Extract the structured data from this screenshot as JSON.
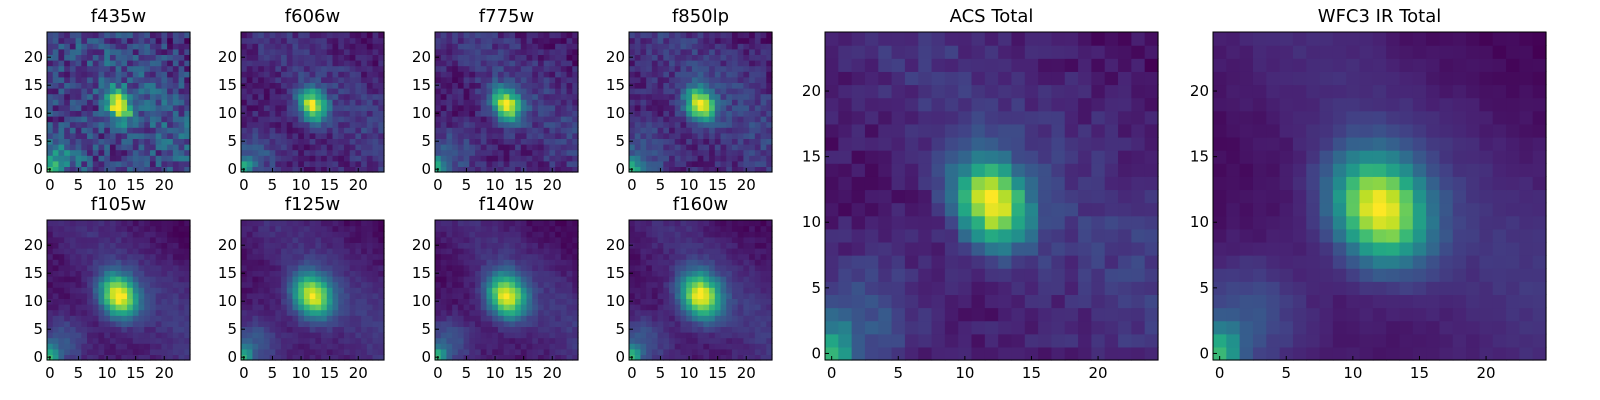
{
  "chart_data": [
    {
      "type": "heatmap",
      "title": "f435w",
      "colormap": "viridis",
      "extent": [
        -0.5,
        24.5,
        -0.5,
        24.5
      ],
      "xticks": [
        0,
        5,
        10,
        15,
        20
      ],
      "yticks": [
        0,
        5,
        10,
        15,
        20
      ],
      "xtick_labels": [
        "0",
        "5",
        "10",
        "15",
        "20"
      ],
      "ytick_labels": [
        "0",
        "5",
        "10",
        "15",
        "20"
      ],
      "source_center": [
        12,
        11.5
      ],
      "sigma": [
        1.4,
        2.0
      ],
      "noise": 0.18,
      "background": 0.2
    },
    {
      "type": "heatmap",
      "title": "f606w",
      "colormap": "viridis",
      "extent": [
        -0.5,
        24.5,
        -0.5,
        24.5
      ],
      "xticks": [
        0,
        5,
        10,
        15,
        20
      ],
      "yticks": [
        0,
        5,
        10,
        15,
        20
      ],
      "xtick_labels": [
        "0",
        "5",
        "10",
        "15",
        "20"
      ],
      "ytick_labels": [
        "0",
        "5",
        "10",
        "15",
        "20"
      ],
      "source_center": [
        12,
        11.5
      ],
      "sigma": [
        1.6,
        2.2
      ],
      "noise": 0.1,
      "background": 0.15
    },
    {
      "type": "heatmap",
      "title": "f775w",
      "colormap": "viridis",
      "extent": [
        -0.5,
        24.5,
        -0.5,
        24.5
      ],
      "xticks": [
        0,
        5,
        10,
        15,
        20
      ],
      "yticks": [
        0,
        5,
        10,
        15,
        20
      ],
      "xtick_labels": [
        "0",
        "5",
        "10",
        "15",
        "20"
      ],
      "ytick_labels": [
        "0",
        "5",
        "10",
        "15",
        "20"
      ],
      "source_center": [
        12,
        11.5
      ],
      "sigma": [
        1.7,
        2.3
      ],
      "noise": 0.1,
      "background": 0.15
    },
    {
      "type": "heatmap",
      "title": "f850lp",
      "colormap": "viridis",
      "extent": [
        -0.5,
        24.5,
        -0.5,
        24.5
      ],
      "xticks": [
        0,
        5,
        10,
        15,
        20
      ],
      "yticks": [
        0,
        5,
        10,
        15,
        20
      ],
      "xtick_labels": [
        "0",
        "5",
        "10",
        "15",
        "20"
      ],
      "ytick_labels": [
        "0",
        "5",
        "10",
        "15",
        "20"
      ],
      "source_center": [
        12,
        11.5
      ],
      "sigma": [
        1.7,
        2.3
      ],
      "noise": 0.1,
      "background": 0.15
    },
    {
      "type": "heatmap",
      "title": "ACS Total",
      "colormap": "viridis",
      "extent": [
        -0.5,
        24.5,
        -0.5,
        24.5
      ],
      "xticks": [
        0,
        5,
        10,
        15,
        20
      ],
      "yticks": [
        0,
        5,
        10,
        15,
        20
      ],
      "xtick_labels": [
        "0",
        "5",
        "10",
        "15",
        "20"
      ],
      "ytick_labels": [
        "0",
        "5",
        "10",
        "15",
        "20"
      ],
      "source_center": [
        12,
        11.5
      ],
      "sigma": [
        1.8,
        2.4
      ],
      "noise": 0.06,
      "background": 0.15
    },
    {
      "type": "heatmap",
      "title": "f105w",
      "colormap": "viridis",
      "extent": [
        -0.5,
        24.5,
        -0.5,
        24.5
      ],
      "xticks": [
        0,
        5,
        10,
        15,
        20
      ],
      "yticks": [
        0,
        5,
        10,
        15,
        20
      ],
      "xtick_labels": [
        "0",
        "5",
        "10",
        "15",
        "20"
      ],
      "ytick_labels": [
        "0",
        "5",
        "10",
        "15",
        "20"
      ],
      "source_center": [
        12,
        11
      ],
      "sigma": [
        2.2,
        2.8
      ],
      "noise": 0.04,
      "background": 0.2
    },
    {
      "type": "heatmap",
      "title": "f125w",
      "colormap": "viridis",
      "extent": [
        -0.5,
        24.5,
        -0.5,
        24.5
      ],
      "xticks": [
        0,
        5,
        10,
        15,
        20
      ],
      "yticks": [
        0,
        5,
        10,
        15,
        20
      ],
      "xtick_labels": [
        "0",
        "5",
        "10",
        "15",
        "20"
      ],
      "ytick_labels": [
        "0",
        "5",
        "10",
        "15",
        "20"
      ],
      "source_center": [
        12,
        11
      ],
      "sigma": [
        2.3,
        2.9
      ],
      "noise": 0.04,
      "background": 0.2
    },
    {
      "type": "heatmap",
      "title": "f140w",
      "colormap": "viridis",
      "extent": [
        -0.5,
        24.5,
        -0.5,
        24.5
      ],
      "xticks": [
        0,
        5,
        10,
        15,
        20
      ],
      "yticks": [
        0,
        5,
        10,
        15,
        20
      ],
      "xtick_labels": [
        "0",
        "5",
        "10",
        "15",
        "20"
      ],
      "ytick_labels": [
        "0",
        "5",
        "10",
        "15",
        "20"
      ],
      "source_center": [
        12,
        11
      ],
      "sigma": [
        2.3,
        2.9
      ],
      "noise": 0.04,
      "background": 0.2
    },
    {
      "type": "heatmap",
      "title": "f160w",
      "colormap": "viridis",
      "extent": [
        -0.5,
        24.5,
        -0.5,
        24.5
      ],
      "xticks": [
        0,
        5,
        10,
        15,
        20
      ],
      "yticks": [
        0,
        5,
        10,
        15,
        20
      ],
      "xtick_labels": [
        "0",
        "5",
        "10",
        "15",
        "20"
      ],
      "ytick_labels": [
        "0",
        "5",
        "10",
        "15",
        "20"
      ],
      "source_center": [
        12,
        11
      ],
      "sigma": [
        2.4,
        3.0
      ],
      "noise": 0.04,
      "background": 0.2
    },
    {
      "type": "heatmap",
      "title": "WFC3 IR Total",
      "colormap": "viridis",
      "extent": [
        -0.5,
        24.5,
        -0.5,
        24.5
      ],
      "xticks": [
        0,
        5,
        10,
        15,
        20
      ],
      "yticks": [
        0,
        5,
        10,
        15,
        20
      ],
      "xtick_labels": [
        "0",
        "5",
        "10",
        "15",
        "20"
      ],
      "ytick_labels": [
        "0",
        "5",
        "10",
        "15",
        "20"
      ],
      "source_center": [
        12,
        11
      ],
      "sigma": [
        2.4,
        3.0
      ],
      "noise": 0.02,
      "background": 0.2
    }
  ]
}
